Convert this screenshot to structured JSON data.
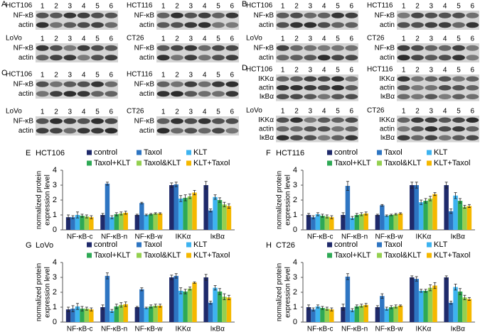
{
  "lanes": [
    "1",
    "2",
    "3",
    "4",
    "5",
    "6"
  ],
  "blot_panels": [
    {
      "letter": "A",
      "blots": [
        {
          "cell": "HCT106",
          "rows": [
            "NF-κB",
            "actin"
          ]
        },
        {
          "cell": "HCT116",
          "rows": [
            "NF-κB",
            "actin"
          ]
        },
        {
          "cell": "LoVo",
          "rows": [
            "NF-κB",
            "actin"
          ]
        },
        {
          "cell": "CT26",
          "rows": [
            "NF-κB",
            "actin"
          ]
        }
      ]
    },
    {
      "letter": "B",
      "blots": [
        {
          "cell": "HCT106",
          "rows": [
            "NF-κB",
            "actin"
          ]
        },
        {
          "cell": "HCT116",
          "rows": [
            "NF-κB",
            "actin"
          ]
        },
        {
          "cell": "LoVo",
          "rows": [
            "NF-κB",
            "actin"
          ]
        },
        {
          "cell": "CT26",
          "rows": [
            "NF-κB",
            "actin"
          ]
        }
      ]
    },
    {
      "letter": "C",
      "blots": [
        {
          "cell": "HCT106",
          "rows": [
            "NF-κB",
            "actin"
          ]
        },
        {
          "cell": "HCT116",
          "rows": [
            "NF-κB",
            "actin"
          ]
        },
        {
          "cell": "LoVo",
          "rows": [
            "NF-κB",
            "actin"
          ]
        },
        {
          "cell": "CT26",
          "rows": [
            "NF-κB",
            "actin"
          ]
        }
      ]
    },
    {
      "letter": "D",
      "blots": [
        {
          "cell": "HCT106",
          "rows": [
            "IKKα",
            "actin",
            "IκBα"
          ]
        },
        {
          "cell": "HCT116",
          "rows": [
            "IKKα",
            "actin",
            "IκBα"
          ]
        },
        {
          "cell": "LoVo",
          "rows": [
            "IKKα",
            "actin",
            "IκBα"
          ]
        },
        {
          "cell": "CT26",
          "rows": [
            "IKKα",
            "actin",
            "IκBα"
          ]
        }
      ]
    }
  ],
  "chart_data": [
    {
      "type": "bar",
      "letter": "E",
      "title": "HCT106",
      "y_label": [
        "normalized protein",
        "expression level"
      ],
      "categories": [
        "NF-κB-c",
        "NF-κB-n",
        "NF-κB-w",
        "IKKα",
        "IκBα"
      ],
      "ylim": [
        0,
        4
      ],
      "yticks": [
        0,
        1,
        2,
        3,
        4
      ],
      "series": [
        {
          "name": "control",
          "color": "#1f2a6b",
          "values": [
            0.85,
            1.0,
            1.0,
            3.0,
            3.0
          ],
          "errors": [
            0.15,
            0.1,
            0.05,
            0.15,
            0.25
          ]
        },
        {
          "name": "Taxol",
          "color": "#2e75c2",
          "values": [
            0.85,
            3.1,
            1.8,
            3.05,
            1.3
          ],
          "errors": [
            0.1,
            0.1,
            0.05,
            0.15,
            0.1
          ]
        },
        {
          "name": "KLT",
          "color": "#3db3f0",
          "values": [
            1.0,
            0.85,
            1.0,
            2.1,
            2.2
          ],
          "errors": [
            0.2,
            0.1,
            0.05,
            0.2,
            0.15
          ]
        },
        {
          "name": "Taxol+KLT",
          "color": "#2ea955",
          "values": [
            0.95,
            1.05,
            1.05,
            2.15,
            2.0
          ],
          "errors": [
            0.1,
            0.1,
            0.05,
            0.2,
            0.15
          ]
        },
        {
          "name": "Taxol&KLT",
          "color": "#94d050",
          "values": [
            0.9,
            1.1,
            1.1,
            2.25,
            1.7
          ],
          "errors": [
            0.1,
            0.1,
            0.05,
            0.15,
            0.15
          ]
        },
        {
          "name": "KLT+Taxol",
          "color": "#f5b800",
          "values": [
            0.85,
            1.15,
            1.1,
            2.5,
            1.6
          ],
          "errors": [
            0.1,
            0.1,
            0.05,
            0.15,
            0.15
          ]
        }
      ]
    },
    {
      "type": "bar",
      "letter": "F",
      "title": "HCT116",
      "y_label": [
        "normalized protein",
        "expression level"
      ],
      "categories": [
        "NF-κB-c",
        "NF-κB-n",
        "NF-κB-w",
        "IKKα",
        "IκBα"
      ],
      "ylim": [
        0,
        4
      ],
      "yticks": [
        0,
        1,
        2,
        3,
        4
      ],
      "series": [
        {
          "name": "control",
          "color": "#1f2a6b",
          "values": [
            1.0,
            1.0,
            1.0,
            3.0,
            3.0
          ],
          "errors": [
            0.1,
            0.15,
            0.05,
            0.2,
            0.2
          ]
        },
        {
          "name": "Taxol",
          "color": "#2e75c2",
          "values": [
            0.85,
            2.95,
            1.65,
            3.0,
            1.25
          ],
          "errors": [
            0.1,
            0.3,
            0.05,
            0.2,
            0.15
          ]
        },
        {
          "name": "KLT",
          "color": "#3db3f0",
          "values": [
            1.05,
            0.8,
            0.95,
            1.85,
            2.3
          ],
          "errors": [
            0.1,
            0.1,
            0.05,
            0.15,
            0.2
          ]
        },
        {
          "name": "Taxol+KLT",
          "color": "#2ea955",
          "values": [
            0.95,
            1.0,
            1.0,
            1.95,
            1.95
          ],
          "errors": [
            0.1,
            0.1,
            0.05,
            0.15,
            0.15
          ]
        },
        {
          "name": "Taxol&KLT",
          "color": "#94d050",
          "values": [
            0.9,
            1.05,
            1.05,
            2.1,
            1.55
          ],
          "errors": [
            0.1,
            0.1,
            0.05,
            0.15,
            0.1
          ]
        },
        {
          "name": "KLT+Taxol",
          "color": "#f5b800",
          "values": [
            0.85,
            1.1,
            1.1,
            2.4,
            1.6
          ],
          "errors": [
            0.1,
            0.1,
            0.05,
            0.1,
            0.1
          ]
        }
      ]
    },
    {
      "type": "bar",
      "letter": "G",
      "title": "LoVo",
      "y_label": [
        "normalized protein",
        "expression level"
      ],
      "categories": [
        "NF-κB-c",
        "NF-κB-n",
        "NF-κB-w",
        "IKKα",
        "IκBα"
      ],
      "ylim": [
        0,
        4
      ],
      "yticks": [
        0,
        1,
        2,
        3,
        4
      ],
      "series": [
        {
          "name": "control",
          "color": "#1f2a6b",
          "values": [
            0.85,
            1.0,
            1.0,
            3.0,
            3.0
          ],
          "errors": [
            0.15,
            0.15,
            0.05,
            0.15,
            0.2
          ]
        },
        {
          "name": "Taxol",
          "color": "#2e75c2",
          "values": [
            0.9,
            3.1,
            2.2,
            3.1,
            1.3
          ],
          "errors": [
            0.2,
            0.2,
            0.1,
            0.15,
            0.1
          ]
        },
        {
          "name": "KLT",
          "color": "#3db3f0",
          "values": [
            1.05,
            0.75,
            0.95,
            2.1,
            2.3
          ],
          "errors": [
            0.2,
            0.1,
            0.05,
            0.2,
            0.15
          ]
        },
        {
          "name": "Taxol+KLT",
          "color": "#2ea955",
          "values": [
            0.9,
            1.05,
            1.05,
            2.05,
            2.05
          ],
          "errors": [
            0.15,
            0.15,
            0.1,
            0.15,
            0.2
          ]
        },
        {
          "name": "Taxol&KLT",
          "color": "#94d050",
          "values": [
            0.9,
            1.15,
            1.1,
            2.25,
            1.7
          ],
          "errors": [
            0.1,
            0.15,
            0.1,
            0.1,
            0.2
          ]
        },
        {
          "name": "KLT+Taxol",
          "color": "#f5b800",
          "values": [
            0.85,
            1.2,
            1.1,
            2.65,
            1.65
          ],
          "errors": [
            0.1,
            0.15,
            0.1,
            0.05,
            0.15
          ]
        }
      ]
    },
    {
      "type": "bar",
      "letter": "H",
      "title": "CT26",
      "y_label": [
        "normalized protein",
        "expression level"
      ],
      "categories": [
        "NF-κB-c",
        "NF-κB-n",
        "NF-κB-w",
        "IKKα",
        "IκBα"
      ],
      "ylim": [
        0,
        4
      ],
      "yticks": [
        0,
        1,
        2,
        3,
        4
      ],
      "series": [
        {
          "name": "control",
          "color": "#1f2a6b",
          "values": [
            1.0,
            1.0,
            1.0,
            3.0,
            3.0
          ],
          "errors": [
            0.15,
            0.2,
            0.1,
            0.1,
            0.1
          ]
        },
        {
          "name": "Taxol",
          "color": "#2e75c2",
          "values": [
            0.85,
            3.05,
            1.75,
            2.9,
            1.3
          ],
          "errors": [
            0.1,
            0.2,
            0.15,
            0.15,
            0.1
          ]
        },
        {
          "name": "KLT",
          "color": "#3db3f0",
          "values": [
            1.05,
            0.8,
            0.9,
            2.1,
            2.35
          ],
          "errors": [
            0.1,
            0.1,
            0.1,
            0.1,
            0.2
          ]
        },
        {
          "name": "Taxol+KLT",
          "color": "#2ea955",
          "values": [
            0.95,
            1.05,
            1.0,
            2.1,
            2.05
          ],
          "errors": [
            0.1,
            0.1,
            0.1,
            0.1,
            0.2
          ]
        },
        {
          "name": "Taxol&KLT",
          "color": "#94d050",
          "values": [
            0.9,
            1.1,
            1.05,
            2.3,
            1.65
          ],
          "errors": [
            0.1,
            0.1,
            0.1,
            0.2,
            0.15
          ]
        },
        {
          "name": "KLT+Taxol",
          "color": "#f5b800",
          "values": [
            0.85,
            1.15,
            1.1,
            2.45,
            1.55
          ],
          "errors": [
            0.1,
            0.1,
            0.05,
            0.2,
            0.1
          ]
        }
      ]
    }
  ]
}
